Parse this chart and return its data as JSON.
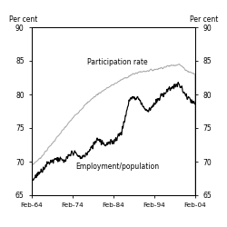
{
  "ylabel_left": "Per cent",
  "ylabel_right": "Per cent",
  "ylim": [
    65,
    90
  ],
  "yticks": [
    65,
    70,
    75,
    80,
    85,
    90
  ],
  "xtick_years": [
    1964,
    1974,
    1984,
    1994,
    2004
  ],
  "xtick_labels": [
    "Feb-64",
    "Feb-74",
    "Feb-84",
    "Feb-94",
    "Feb-04"
  ],
  "participation_color": "#aaaaaa",
  "employment_color": "#000000",
  "participation_label": "Participation rate",
  "employment_label": "Employment/population",
  "background_color": "#ffffff",
  "figsize": [
    2.5,
    2.5
  ],
  "dpi": 100,
  "part_x": [
    1964,
    1966,
    1968,
    1970,
    1972,
    1974,
    1976,
    1978,
    1980,
    1982,
    1984,
    1986,
    1988,
    1990,
    1992,
    1994,
    1996,
    1998,
    2000,
    2002,
    2004
  ],
  "part_y": [
    69.5,
    70.5,
    72.0,
    73.5,
    75.0,
    76.5,
    77.8,
    79.0,
    80.0,
    80.8,
    81.5,
    82.2,
    82.8,
    83.3,
    83.5,
    83.7,
    84.0,
    84.3,
    84.5,
    83.5,
    83.0
  ],
  "emp_x": [
    1964,
    1966,
    1968,
    1970,
    1972,
    1974,
    1976,
    1978,
    1980,
    1982,
    1984,
    1986,
    1988,
    1990,
    1992,
    1994,
    1996,
    1998,
    2000,
    2002,
    2004
  ],
  "emp_y": [
    67.2,
    68.5,
    69.8,
    70.5,
    70.0,
    71.5,
    70.5,
    71.5,
    73.5,
    72.5,
    73.0,
    74.5,
    79.5,
    79.5,
    77.5,
    78.5,
    80.0,
    81.0,
    81.5,
    79.5,
    78.5
  ]
}
